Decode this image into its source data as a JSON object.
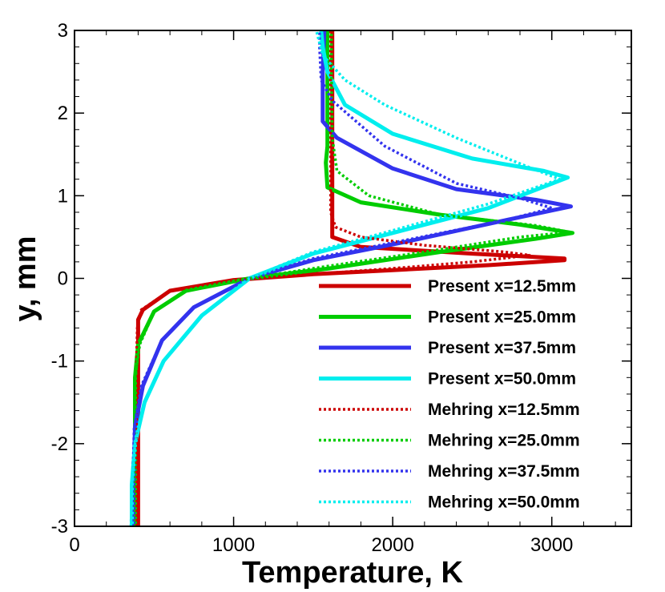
{
  "chart_data": {
    "type": "line",
    "title": "",
    "xlabel": "Temperature, K",
    "ylabel": "y, mm",
    "xlim": [
      0,
      3500
    ],
    "ylim": [
      -3,
      3
    ],
    "xticks": [
      0,
      1000,
      2000,
      3000
    ],
    "yticks": [
      -3,
      -2,
      -1,
      0,
      1,
      2,
      3
    ],
    "xtick_labels": [
      "0",
      "1000",
      "2000",
      "3000"
    ],
    "ytick_labels": [
      "-3",
      "-2",
      "-1",
      "0",
      "1",
      "2",
      "3"
    ],
    "legend_position": "bottom-right",
    "series": [
      {
        "name": "Present x=12.5mm",
        "color": "#cc0000",
        "style": "solid",
        "points": [
          [
            400,
            -3
          ],
          [
            400,
            -2
          ],
          [
            400,
            -1
          ],
          [
            400,
            -0.5
          ],
          [
            430,
            -0.38
          ],
          [
            600,
            -0.15
          ],
          [
            1000,
            -0.02
          ],
          [
            1500,
            0.05
          ],
          [
            2000,
            0.1
          ],
          [
            2600,
            0.16
          ],
          [
            3080,
            0.22
          ],
          [
            3080,
            0.24
          ],
          [
            2500,
            0.3
          ],
          [
            1800,
            0.38
          ],
          [
            1620,
            0.5
          ],
          [
            1620,
            1
          ],
          [
            1620,
            2
          ],
          [
            1620,
            3
          ]
        ]
      },
      {
        "name": "Present x=25.0mm",
        "color": "#00cc00",
        "style": "solid",
        "points": [
          [
            380,
            -3
          ],
          [
            380,
            -2
          ],
          [
            380,
            -1.2
          ],
          [
            400,
            -0.8
          ],
          [
            500,
            -0.4
          ],
          [
            700,
            -0.15
          ],
          [
            1100,
            0
          ],
          [
            1600,
            0.12
          ],
          [
            2300,
            0.32
          ],
          [
            2900,
            0.48
          ],
          [
            3130,
            0.55
          ],
          [
            2800,
            0.65
          ],
          [
            2300,
            0.77
          ],
          [
            1800,
            0.92
          ],
          [
            1590,
            1.1
          ],
          [
            1580,
            1.4
          ],
          [
            1590,
            1.6
          ],
          [
            1590,
            2
          ],
          [
            1590,
            2.6
          ],
          [
            1590,
            3
          ]
        ]
      },
      {
        "name": "Present x=37.5mm",
        "color": "#3333ee",
        "style": "solid",
        "points": [
          [
            370,
            -3
          ],
          [
            370,
            -2.5
          ],
          [
            380,
            -1.8
          ],
          [
            430,
            -1.3
          ],
          [
            550,
            -0.75
          ],
          [
            750,
            -0.35
          ],
          [
            1100,
            0
          ],
          [
            1500,
            0.22
          ],
          [
            2100,
            0.45
          ],
          [
            2700,
            0.7
          ],
          [
            3120,
            0.87
          ],
          [
            2900,
            0.95
          ],
          [
            2400,
            1.08
          ],
          [
            2000,
            1.33
          ],
          [
            1650,
            1.7
          ],
          [
            1560,
            1.9
          ],
          [
            1560,
            2.2
          ],
          [
            1560,
            2.5
          ],
          [
            1570,
            3
          ]
        ]
      },
      {
        "name": "Present x=50.0mm",
        "color": "#00eeee",
        "style": "solid",
        "points": [
          [
            360,
            -3
          ],
          [
            360,
            -2.5
          ],
          [
            380,
            -2
          ],
          [
            440,
            -1.5
          ],
          [
            560,
            -1
          ],
          [
            800,
            -0.45
          ],
          [
            1100,
            0
          ],
          [
            1500,
            0.3
          ],
          [
            2000,
            0.55
          ],
          [
            2600,
            0.85
          ],
          [
            3100,
            1.22
          ],
          [
            2950,
            1.3
          ],
          [
            2500,
            1.45
          ],
          [
            2000,
            1.75
          ],
          [
            1700,
            2.1
          ],
          [
            1590,
            2.5
          ],
          [
            1560,
            2.8
          ],
          [
            1550,
            3
          ]
        ]
      },
      {
        "name": "Mehring x=12.5mm",
        "color": "#cc0000",
        "style": "dotted",
        "points": [
          [
            390,
            -3
          ],
          [
            390,
            -2
          ],
          [
            390,
            -1
          ],
          [
            395,
            -0.6
          ],
          [
            420,
            -0.38
          ],
          [
            600,
            -0.15
          ],
          [
            1000,
            -0.02
          ],
          [
            1500,
            0.05
          ],
          [
            2000,
            0.12
          ],
          [
            2500,
            0.2
          ],
          [
            2860,
            0.28
          ],
          [
            2700,
            0.32
          ],
          [
            2200,
            0.4
          ],
          [
            1800,
            0.5
          ],
          [
            1640,
            0.62
          ],
          [
            1610,
            0.8
          ],
          [
            1610,
            1.5
          ],
          [
            1610,
            3
          ]
        ]
      },
      {
        "name": "Mehring x=25.0mm",
        "color": "#00cc00",
        "style": "dotted",
        "points": [
          [
            375,
            -3
          ],
          [
            375,
            -2
          ],
          [
            380,
            -1.2
          ],
          [
            410,
            -0.8
          ],
          [
            500,
            -0.4
          ],
          [
            700,
            -0.15
          ],
          [
            1100,
            0
          ],
          [
            1600,
            0.15
          ],
          [
            2200,
            0.32
          ],
          [
            2800,
            0.5
          ],
          [
            3110,
            0.56
          ],
          [
            2900,
            0.64
          ],
          [
            2300,
            0.77
          ],
          [
            1850,
            1
          ],
          [
            1650,
            1.3
          ],
          [
            1620,
            1.7
          ],
          [
            1615,
            2.5
          ],
          [
            1615,
            3
          ]
        ]
      },
      {
        "name": "Mehring x=37.5mm",
        "color": "#3333ee",
        "style": "dotted",
        "points": [
          [
            365,
            -3
          ],
          [
            365,
            -2.5
          ],
          [
            375,
            -1.8
          ],
          [
            420,
            -1.3
          ],
          [
            550,
            -0.75
          ],
          [
            750,
            -0.35
          ],
          [
            1100,
            0
          ],
          [
            1500,
            0.24
          ],
          [
            2100,
            0.47
          ],
          [
            2700,
            0.7
          ],
          [
            3000,
            0.85
          ],
          [
            2800,
            0.97
          ],
          [
            2400,
            1.15
          ],
          [
            1950,
            1.6
          ],
          [
            1620,
            2.15
          ],
          [
            1550,
            2.4
          ],
          [
            1540,
            2.8
          ],
          [
            1540,
            3
          ]
        ]
      },
      {
        "name": "Mehring x=50.0mm",
        "color": "#00eeee",
        "style": "dotted",
        "points": [
          [
            355,
            -3
          ],
          [
            360,
            -2.5
          ],
          [
            380,
            -2
          ],
          [
            440,
            -1.5
          ],
          [
            560,
            -1
          ],
          [
            800,
            -0.45
          ],
          [
            1100,
            0
          ],
          [
            1500,
            0.32
          ],
          [
            2000,
            0.58
          ],
          [
            2600,
            0.9
          ],
          [
            3050,
            1.2
          ],
          [
            2850,
            1.35
          ],
          [
            2400,
            1.7
          ],
          [
            1950,
            2.1
          ],
          [
            1700,
            2.4
          ],
          [
            1560,
            2.7
          ],
          [
            1520,
            3
          ]
        ]
      }
    ]
  }
}
